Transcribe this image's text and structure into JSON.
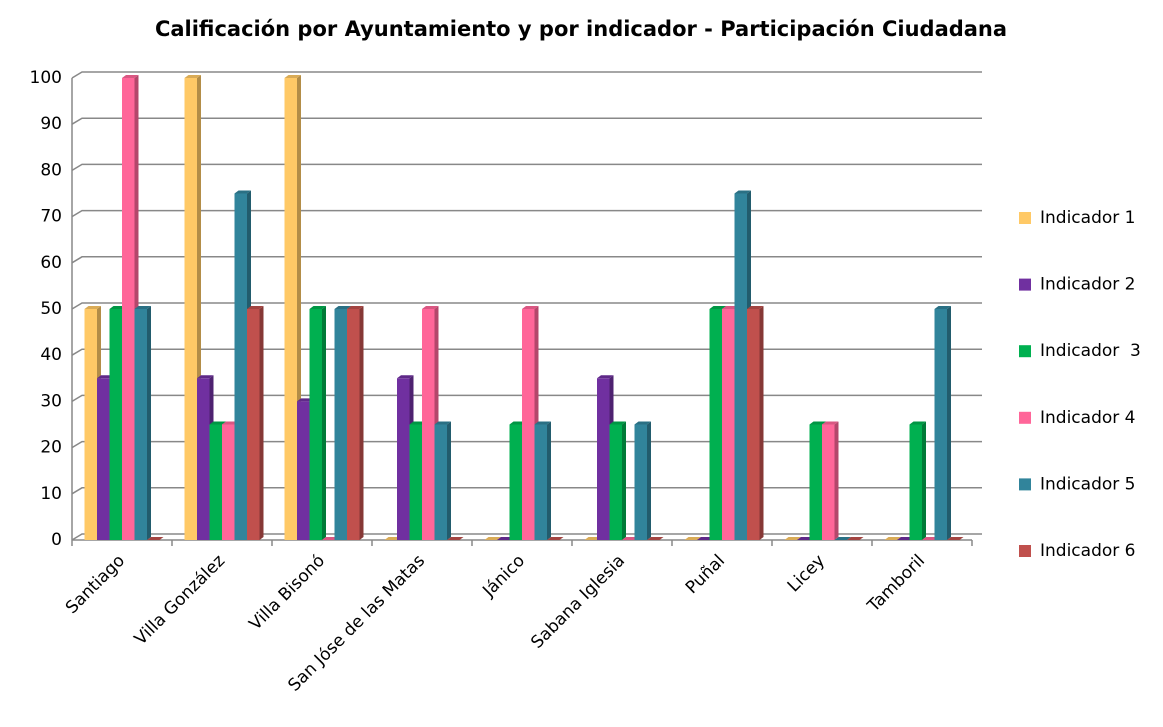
{
  "chart_data": {
    "type": "bar",
    "title": "Calificación por Ayuntamiento y por indicador - Participación Ciudadana",
    "categories": [
      "Santiago",
      "Villa González",
      "Villa Bisonó",
      "San Jóse de las Matas",
      "Jánico",
      "Sabana Iglesia",
      "Puñal",
      "Licey",
      "Tamboril"
    ],
    "series": [
      {
        "name": "Indicador 1",
        "color": "#ffc966",
        "values": [
          50,
          100,
          100,
          0,
          0,
          0,
          0,
          0,
          0
        ]
      },
      {
        "name": "Indicador 2",
        "color": "#7030a0",
        "values": [
          35,
          35,
          30,
          35,
          0,
          35,
          0,
          0,
          0
        ]
      },
      {
        "name": "Indicador  3",
        "color": "#00b050",
        "values": [
          50,
          25,
          50,
          25,
          25,
          25,
          50,
          25,
          25
        ]
      },
      {
        "name": "Indicador 4",
        "color": "#ff6699",
        "values": [
          100,
          25,
          0,
          50,
          50,
          0,
          50,
          25,
          0
        ]
      },
      {
        "name": "Indicador 5",
        "color": "#31849b",
        "values": [
          50,
          75,
          50,
          25,
          25,
          25,
          75,
          0,
          50
        ]
      },
      {
        "name": "Indicador 6",
        "color": "#c0504d",
        "values": [
          0,
          50,
          50,
          0,
          0,
          0,
          50,
          0,
          0
        ]
      }
    ],
    "ylim": [
      0,
      100
    ],
    "yticks": [
      0,
      10,
      20,
      30,
      40,
      50,
      60,
      70,
      80,
      90,
      100
    ],
    "grid": true,
    "legend": "right"
  }
}
